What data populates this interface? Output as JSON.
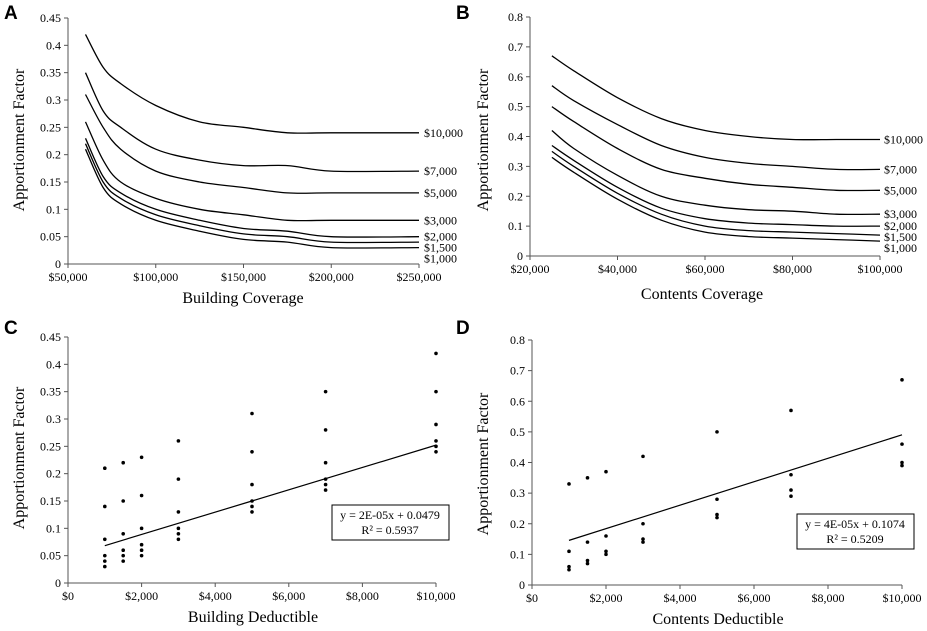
{
  "colors": {
    "line": "#000000",
    "axis": "#555555",
    "background": "#ffffff"
  },
  "chart_data": [
    {
      "panel": "A",
      "type": "line",
      "xlabel": "Building Coverage",
      "ylabel": "Apportionment Factor",
      "xlim": [
        50000,
        250000
      ],
      "ylim": [
        0,
        0.45
      ],
      "xticks": [
        50000,
        100000,
        150000,
        200000,
        250000
      ],
      "xtick_labels": [
        "$50,000",
        "$100,000",
        "$150,000",
        "$200,000",
        "$250,000"
      ],
      "yticks": [
        0,
        0.05,
        0.1,
        0.15,
        0.2,
        0.25,
        0.3,
        0.35,
        0.4,
        0.45
      ],
      "ytick_labels": [
        "0",
        "0.05",
        "0.1",
        "0.15",
        "0.2",
        "0.25",
        "0.3",
        "0.35",
        "0.4",
        "0.45"
      ],
      "x": [
        60000,
        70000,
        80000,
        100000,
        125000,
        150000,
        175000,
        200000,
        250000
      ],
      "series": [
        {
          "name": "$10,000",
          "values": [
            0.42,
            0.36,
            0.33,
            0.29,
            0.26,
            0.25,
            0.24,
            0.24,
            0.24
          ]
        },
        {
          "name": "$7,000",
          "values": [
            0.35,
            0.28,
            0.25,
            0.21,
            0.19,
            0.18,
            0.18,
            0.17,
            0.17
          ]
        },
        {
          "name": "$5,000",
          "values": [
            0.31,
            0.25,
            0.21,
            0.17,
            0.15,
            0.14,
            0.13,
            0.13,
            0.13
          ]
        },
        {
          "name": "$3,000",
          "values": [
            0.26,
            0.19,
            0.15,
            0.12,
            0.1,
            0.09,
            0.08,
            0.08,
            0.08
          ]
        },
        {
          "name": "$2,000",
          "values": [
            0.23,
            0.16,
            0.13,
            0.1,
            0.08,
            0.065,
            0.06,
            0.05,
            0.05
          ]
        },
        {
          "name": "$1,500",
          "values": [
            0.22,
            0.15,
            0.12,
            0.09,
            0.07,
            0.055,
            0.05,
            0.04,
            0.04
          ]
        },
        {
          "name": "$1,000",
          "values": [
            0.21,
            0.14,
            0.11,
            0.08,
            0.06,
            0.045,
            0.04,
            0.03,
            0.03
          ]
        }
      ]
    },
    {
      "panel": "B",
      "type": "line",
      "xlabel": "Contents Coverage",
      "ylabel": "Apportionment Factor",
      "xlim": [
        20000,
        100000
      ],
      "ylim": [
        0,
        0.8
      ],
      "xticks": [
        20000,
        40000,
        60000,
        80000,
        100000
      ],
      "xtick_labels": [
        "$20,000",
        "$40,000",
        "$60,000",
        "$80,000",
        "$100,000"
      ],
      "yticks": [
        0,
        0.1,
        0.2,
        0.3,
        0.4,
        0.5,
        0.6,
        0.7,
        0.8
      ],
      "ytick_labels": [
        "0",
        "0.1",
        "0.2",
        "0.3",
        "0.4",
        "0.5",
        "0.6",
        "0.7",
        "0.8"
      ],
      "x": [
        25000,
        30000,
        40000,
        50000,
        60000,
        70000,
        80000,
        90000,
        100000
      ],
      "series": [
        {
          "name": "$10,000",
          "values": [
            0.67,
            0.62,
            0.53,
            0.46,
            0.42,
            0.4,
            0.39,
            0.39,
            0.39
          ]
        },
        {
          "name": "$7,000",
          "values": [
            0.57,
            0.52,
            0.44,
            0.37,
            0.33,
            0.31,
            0.3,
            0.29,
            0.29
          ]
        },
        {
          "name": "$5,000",
          "values": [
            0.5,
            0.45,
            0.36,
            0.29,
            0.26,
            0.24,
            0.23,
            0.22,
            0.22
          ]
        },
        {
          "name": "$3,000",
          "values": [
            0.42,
            0.36,
            0.27,
            0.2,
            0.17,
            0.155,
            0.15,
            0.14,
            0.14
          ]
        },
        {
          "name": "$2,000",
          "values": [
            0.37,
            0.32,
            0.23,
            0.16,
            0.125,
            0.11,
            0.105,
            0.1,
            0.1
          ]
        },
        {
          "name": "$1,500",
          "values": [
            0.35,
            0.3,
            0.21,
            0.14,
            0.1,
            0.085,
            0.08,
            0.075,
            0.07
          ]
        },
        {
          "name": "$1,000",
          "values": [
            0.33,
            0.28,
            0.19,
            0.12,
            0.08,
            0.065,
            0.06,
            0.055,
            0.05
          ]
        }
      ]
    },
    {
      "panel": "C",
      "type": "scatter",
      "xlabel": "Building Deductible",
      "ylabel": "Apportionment Factor",
      "xlim": [
        0,
        10000
      ],
      "ylim": [
        0,
        0.45
      ],
      "xticks": [
        0,
        2000,
        4000,
        6000,
        8000,
        10000
      ],
      "xtick_labels": [
        "$0",
        "$2,000",
        "$4,000",
        "$6,000",
        "$8,000",
        "$10,000"
      ],
      "yticks": [
        0,
        0.05,
        0.1,
        0.15,
        0.2,
        0.25,
        0.3,
        0.35,
        0.4,
        0.45
      ],
      "ytick_labels": [
        "0",
        "0.05",
        "0.1",
        "0.15",
        "0.2",
        "0.25",
        "0.3",
        "0.35",
        "0.4",
        "0.45"
      ],
      "points": [
        [
          1000,
          0.21
        ],
        [
          1000,
          0.14
        ],
        [
          1000,
          0.08
        ],
        [
          1000,
          0.05
        ],
        [
          1000,
          0.04
        ],
        [
          1000,
          0.03
        ],
        [
          1500,
          0.22
        ],
        [
          1500,
          0.15
        ],
        [
          1500,
          0.09
        ],
        [
          1500,
          0.06
        ],
        [
          1500,
          0.05
        ],
        [
          1500,
          0.04
        ],
        [
          2000,
          0.23
        ],
        [
          2000,
          0.16
        ],
        [
          2000,
          0.1
        ],
        [
          2000,
          0.07
        ],
        [
          2000,
          0.06
        ],
        [
          2000,
          0.05
        ],
        [
          3000,
          0.26
        ],
        [
          3000,
          0.19
        ],
        [
          3000,
          0.13
        ],
        [
          3000,
          0.1
        ],
        [
          3000,
          0.09
        ],
        [
          3000,
          0.08
        ],
        [
          5000,
          0.31
        ],
        [
          5000,
          0.24
        ],
        [
          5000,
          0.18
        ],
        [
          5000,
          0.15
        ],
        [
          5000,
          0.14
        ],
        [
          5000,
          0.13
        ],
        [
          7000,
          0.35
        ],
        [
          7000,
          0.28
        ],
        [
          7000,
          0.22
        ],
        [
          7000,
          0.19
        ],
        [
          7000,
          0.18
        ],
        [
          7000,
          0.17
        ],
        [
          10000,
          0.42
        ],
        [
          10000,
          0.35
        ],
        [
          10000,
          0.29
        ],
        [
          10000,
          0.26
        ],
        [
          10000,
          0.25
        ],
        [
          10000,
          0.24
        ]
      ],
      "trendline": {
        "slope": 2.043e-05,
        "intercept": 0.0479
      },
      "equation": "y = 2E-05x + 0.0479",
      "r2": "R² = 0.5937"
    },
    {
      "panel": "D",
      "type": "scatter",
      "xlabel": "Contents Deductible",
      "ylabel": "Apportionment Factor",
      "xlim": [
        0,
        10000
      ],
      "ylim": [
        0,
        0.8
      ],
      "xticks": [
        0,
        2000,
        4000,
        6000,
        8000,
        10000
      ],
      "xtick_labels": [
        "$0",
        "$2,000",
        "$4,000",
        "$6,000",
        "$8,000",
        "$10,000"
      ],
      "yticks": [
        0,
        0.1,
        0.2,
        0.3,
        0.4,
        0.5,
        0.6,
        0.7,
        0.8
      ],
      "ytick_labels": [
        "0",
        "0.1",
        "0.2",
        "0.3",
        "0.4",
        "0.5",
        "0.6",
        "0.7",
        "0.8"
      ],
      "points": [
        [
          1000,
          0.33
        ],
        [
          1000,
          0.11
        ],
        [
          1000,
          0.06
        ],
        [
          1000,
          0.05
        ],
        [
          1500,
          0.35
        ],
        [
          1500,
          0.14
        ],
        [
          1500,
          0.08
        ],
        [
          1500,
          0.07
        ],
        [
          2000,
          0.37
        ],
        [
          2000,
          0.16
        ],
        [
          2000,
          0.11
        ],
        [
          2000,
          0.1
        ],
        [
          3000,
          0.42
        ],
        [
          3000,
          0.2
        ],
        [
          3000,
          0.15
        ],
        [
          3000,
          0.14
        ],
        [
          5000,
          0.5
        ],
        [
          5000,
          0.28
        ],
        [
          5000,
          0.23
        ],
        [
          5000,
          0.22
        ],
        [
          7000,
          0.57
        ],
        [
          7000,
          0.36
        ],
        [
          7000,
          0.31
        ],
        [
          7000,
          0.29
        ],
        [
          10000,
          0.67
        ],
        [
          10000,
          0.46
        ],
        [
          10000,
          0.4
        ],
        [
          10000,
          0.39
        ]
      ],
      "trendline": {
        "slope": 3.83e-05,
        "intercept": 0.1074
      },
      "equation": "y = 4E-05x + 0.1074",
      "r2": "R² = 0.5209"
    }
  ]
}
